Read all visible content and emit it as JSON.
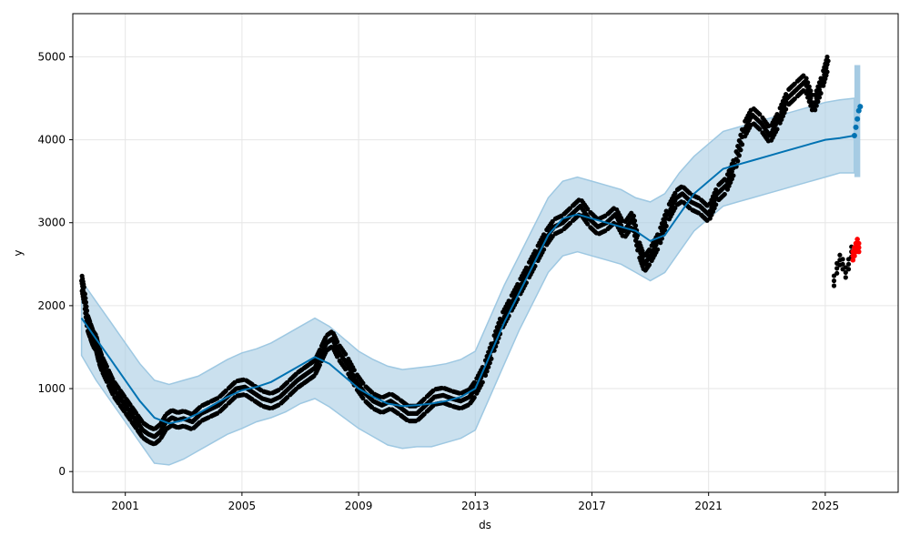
{
  "chart_data": {
    "type": "scatter",
    "title": "",
    "xlabel": "ds",
    "ylabel": "y",
    "xlim": [
      1999.2,
      2027.5
    ],
    "ylim": [
      -250,
      5520
    ],
    "x_ticks": [
      2001,
      2005,
      2009,
      2013,
      2017,
      2021,
      2025
    ],
    "y_ticks": [
      0,
      1000,
      2000,
      3000,
      4000,
      5000
    ],
    "grid": true,
    "colors": {
      "observed": "#000000",
      "forecast": "#0072B2",
      "interval": "#a6cbe3",
      "interval_edge": "#9ec8e2",
      "highlight": "#ff0000"
    },
    "series": [
      {
        "name": "y",
        "kind": "points",
        "x": [
          1999.5,
          1999.6,
          1999.7,
          1999.8,
          1999.9,
          2000.0,
          2000.1,
          2000.2,
          2000.4,
          2000.6,
          2000.8,
          2001.0,
          2001.2,
          2001.4,
          2001.6,
          2001.8,
          2002.0,
          2002.2,
          2002.4,
          2002.6,
          2002.8,
          2003.0,
          2003.3,
          2003.6,
          2003.9,
          2004.2,
          2004.5,
          2004.8,
          2005.1,
          2005.4,
          2005.7,
          2006.0,
          2006.3,
          2006.6,
          2006.9,
          2007.1,
          2007.3,
          2007.5,
          2007.7,
          2007.9,
          2008.1,
          2008.3,
          2008.6,
          2008.9,
          2009.2,
          2009.5,
          2009.8,
          2010.1,
          2010.4,
          2010.7,
          2011.0,
          2011.3,
          2011.6,
          2011.9,
          2012.2,
          2012.5,
          2012.8,
          2013.0,
          2013.3,
          2013.6,
          2013.9,
          2014.2,
          2014.5,
          2014.8,
          2015.1,
          2015.4,
          2015.7,
          2016.0,
          2016.3,
          2016.6,
          2016.9,
          2017.2,
          2017.5,
          2017.8,
          2018.1,
          2018.4,
          2018.6,
          2018.8,
          2019.0,
          2019.3,
          2019.6,
          2019.9,
          2020.1,
          2020.4,
          2020.7,
          2021.0,
          2021.3,
          2021.6,
          2021.9,
          2022.2,
          2022.5,
          2022.8,
          2023.1,
          2023.4,
          2023.7,
          2024.0,
          2024.3,
          2024.6,
          2024.9,
          2025.1
        ],
        "y": [
          2300,
          2100,
          1800,
          1700,
          1600,
          1550,
          1400,
          1300,
          1150,
          1000,
          900,
          800,
          700,
          600,
          500,
          450,
          420,
          480,
          600,
          650,
          620,
          640,
          600,
          700,
          750,
          800,
          900,
          1000,
          1020,
          950,
          880,
          850,
          900,
          1000,
          1100,
          1150,
          1200,
          1250,
          1400,
          1550,
          1600,
          1450,
          1300,
          1100,
          950,
          850,
          800,
          850,
          780,
          700,
          700,
          800,
          900,
          920,
          880,
          850,
          900,
          1000,
          1200,
          1500,
          1800,
          2000,
          2200,
          2400,
          2600,
          2800,
          2950,
          3000,
          3100,
          3200,
          3050,
          2950,
          3000,
          3100,
          2900,
          3050,
          2700,
          2500,
          2600,
          2800,
          3100,
          3300,
          3350,
          3250,
          3200,
          3100,
          3350,
          3450,
          3700,
          4100,
          4300,
          4200,
          4050,
          4250,
          4500,
          4600,
          4700,
          4400,
          4700,
          4950
        ]
      },
      {
        "name": "yhat",
        "kind": "line",
        "x": [
          1999.5,
          2000.0,
          2000.5,
          2001.0,
          2001.5,
          2002.0,
          2002.5,
          2003.0,
          2003.5,
          2004.0,
          2004.5,
          2005.0,
          2005.5,
          2006.0,
          2006.5,
          2007.0,
          2007.5,
          2008.0,
          2008.5,
          2009.0,
          2009.5,
          2010.0,
          2010.5,
          2011.0,
          2011.5,
          2012.0,
          2012.5,
          2013.0,
          2013.5,
          2014.0,
          2014.5,
          2015.0,
          2015.5,
          2016.0,
          2016.5,
          2017.0,
          2017.5,
          2018.0,
          2018.5,
          2019.0,
          2019.5,
          2020.0,
          2020.5,
          2021.0,
          2021.5,
          2022.0,
          2022.5,
          2023.0,
          2023.5,
          2024.0,
          2024.5,
          2025.0,
          2025.5,
          2026.0
        ],
        "y": [
          1850,
          1600,
          1350,
          1100,
          850,
          650,
          580,
          620,
          700,
          800,
          900,
          980,
          1020,
          1080,
          1180,
          1280,
          1380,
          1300,
          1150,
          1000,
          900,
          820,
          790,
          800,
          820,
          850,
          900,
          1000,
          1400,
          1800,
          2150,
          2500,
          2850,
          3050,
          3100,
          3050,
          3000,
          2950,
          2900,
          2780,
          2850,
          3100,
          3350,
          3500,
          3650,
          3700,
          3750,
          3800,
          3850,
          3900,
          3950,
          4000,
          4020,
          4050
        ]
      },
      {
        "name": "yhat_lower",
        "kind": "band-lower",
        "x": [
          1999.5,
          2000.0,
          2000.5,
          2001.0,
          2001.5,
          2002.0,
          2002.5,
          2003.0,
          2003.5,
          2004.0,
          2004.5,
          2005.0,
          2005.5,
          2006.0,
          2006.5,
          2007.0,
          2007.5,
          2008.0,
          2008.5,
          2009.0,
          2009.5,
          2010.0,
          2010.5,
          2011.0,
          2011.5,
          2012.0,
          2012.5,
          2013.0,
          2013.5,
          2014.0,
          2014.5,
          2015.0,
          2015.5,
          2016.0,
          2016.5,
          2017.0,
          2017.5,
          2018.0,
          2018.5,
          2019.0,
          2019.5,
          2020.0,
          2020.5,
          2021.0,
          2021.5,
          2022.0,
          2022.5,
          2023.0,
          2023.5,
          2024.0,
          2024.5,
          2025.0,
          2025.5,
          2026.0
        ],
        "y": [
          1400,
          1100,
          850,
          600,
          350,
          100,
          80,
          150,
          250,
          350,
          450,
          520,
          600,
          650,
          720,
          820,
          880,
          780,
          650,
          520,
          420,
          320,
          280,
          300,
          300,
          350,
          400,
          500,
          900,
          1300,
          1700,
          2050,
          2400,
          2600,
          2650,
          2600,
          2550,
          2500,
          2400,
          2300,
          2400,
          2650,
          2900,
          3050,
          3200,
          3250,
          3300,
          3350,
          3400,
          3450,
          3500,
          3550,
          3600,
          3600
        ]
      },
      {
        "name": "yhat_upper",
        "kind": "band-upper",
        "x": [
          1999.5,
          2000.0,
          2000.5,
          2001.0,
          2001.5,
          2002.0,
          2002.5,
          2003.0,
          2003.5,
          2004.0,
          2004.5,
          2005.0,
          2005.5,
          2006.0,
          2006.5,
          2007.0,
          2007.5,
          2008.0,
          2008.5,
          2009.0,
          2009.5,
          2010.0,
          2010.5,
          2011.0,
          2011.5,
          2012.0,
          2012.5,
          2013.0,
          2013.5,
          2014.0,
          2014.5,
          2015.0,
          2015.5,
          2016.0,
          2016.5,
          2017.0,
          2017.5,
          2018.0,
          2018.5,
          2019.0,
          2019.5,
          2020.0,
          2020.5,
          2021.0,
          2021.5,
          2022.0,
          2022.5,
          2023.0,
          2023.5,
          2024.0,
          2024.5,
          2025.0,
          2025.5,
          2026.0
        ],
        "y": [
          2300,
          2050,
          1800,
          1550,
          1300,
          1100,
          1050,
          1100,
          1150,
          1250,
          1350,
          1430,
          1480,
          1550,
          1650,
          1750,
          1850,
          1750,
          1600,
          1450,
          1350,
          1270,
          1230,
          1250,
          1270,
          1300,
          1350,
          1450,
          1850,
          2250,
          2600,
          2950,
          3300,
          3500,
          3550,
          3500,
          3450,
          3400,
          3300,
          3250,
          3350,
          3600,
          3800,
          3950,
          4100,
          4150,
          4200,
          4250,
          4300,
          4350,
          4400,
          4450,
          4480,
          4500
        ]
      },
      {
        "name": "forecast-band-tail",
        "kind": "vertical-band",
        "x": [
          2026.0,
          2026.2
        ],
        "y_low": 3550,
        "y_high": 4900
      },
      {
        "name": "forecast-points",
        "kind": "points",
        "x": [
          2026.0,
          2026.05,
          2026.1,
          2026.15,
          2026.2
        ],
        "y": [
          4050,
          4150,
          4250,
          4350,
          4400
        ]
      },
      {
        "name": "recent-observed",
        "kind": "points",
        "x": [
          2025.3,
          2025.4,
          2025.5,
          2025.6,
          2025.7,
          2025.8,
          2025.9
        ],
        "y": [
          2300,
          2450,
          2550,
          2500,
          2400,
          2500,
          2650
        ]
      },
      {
        "name": "recent-red",
        "kind": "points",
        "x": [
          2025.95,
          2026.0,
          2026.05,
          2026.1,
          2026.15
        ],
        "y": [
          2600,
          2650,
          2700,
          2750,
          2700
        ]
      }
    ]
  }
}
